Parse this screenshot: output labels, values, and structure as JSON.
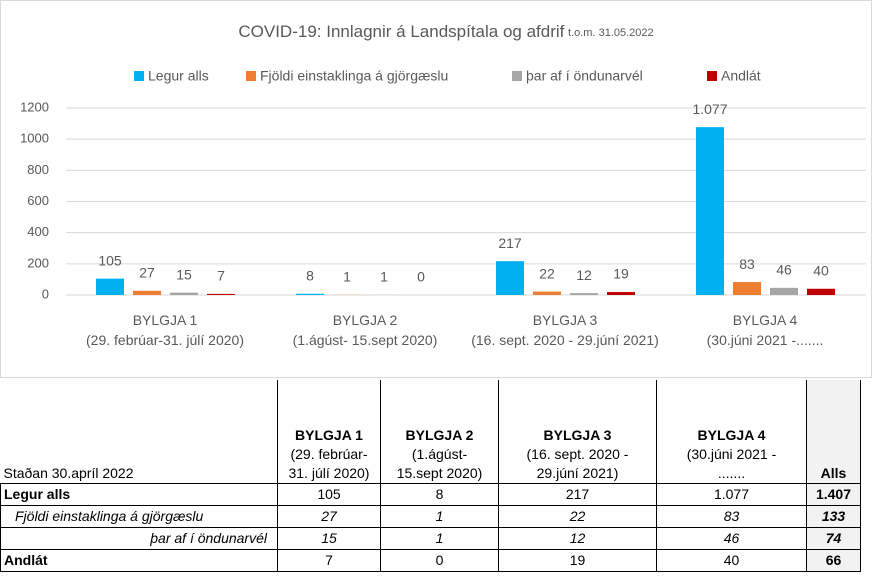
{
  "chart_data": {
    "type": "bar",
    "title": "COVID-19: Innlagnir á Landspítala og afdrif",
    "subtitle": "t.o.m. 31.05.2022",
    "categories": [
      "BYLGJA 1\n(29. febrúar-31. júlí 2020)",
      "BYLGJA 2\n(1.ágúst- 15.sept 2020)",
      "BYLGJA 3\n(16. sept. 2020 - 29.júní 2021)",
      "BYLGJA 4\n(30.júni 2021 -......."
    ],
    "series": [
      {
        "name": "Legur alls",
        "color": "#00b0f0",
        "values": [
          105,
          8,
          217,
          1077
        ],
        "value_labels": [
          "105",
          "8",
          "217",
          "1.077"
        ]
      },
      {
        "name": "Fjöldi einstaklinga á gjörgæslu",
        "color": "#ed7d31",
        "values": [
          27,
          1,
          22,
          83
        ]
      },
      {
        "name": "þar af í öndunarvél",
        "color": "#a5a5a5",
        "values": [
          15,
          1,
          12,
          46
        ]
      },
      {
        "name": "Andlát",
        "color": "#c00000",
        "values": [
          7,
          0,
          19,
          40
        ]
      }
    ],
    "ylim": [
      0,
      1200
    ],
    "yticks": [
      0,
      200,
      400,
      600,
      800,
      1000,
      1200
    ],
    "grid": true,
    "legend": "top"
  },
  "table": {
    "corner": "Staðan 30.apríl 2022",
    "columns": [
      {
        "title": "BYLGJA 1",
        "subtitle": "(29. febrúar-\n31. júlí 2020)"
      },
      {
        "title": "BYLGJA 2",
        "subtitle": "(1.ágúst-\n15.sept 2020)"
      },
      {
        "title": "BYLGJA 3",
        "subtitle": "(16. sept. 2020 -\n29.júní 2021)"
      },
      {
        "title": "BYLGJA 4",
        "subtitle": "(30.júni 2021 -\n......."
      }
    ],
    "total_header": "Alls",
    "rows": [
      {
        "label": "Legur alls",
        "cells": [
          "105",
          "8",
          "217",
          "1.077"
        ],
        "total": "1.407"
      },
      {
        "label": "Fjöldi einstaklinga á gjörgæslu",
        "cells": [
          "27",
          "1",
          "22",
          "83"
        ],
        "total": "133"
      },
      {
        "label": "þar af í öndunarvél",
        "cells": [
          "15",
          "1",
          "12",
          "46"
        ],
        "total": "74"
      },
      {
        "label": "Andlát",
        "cells": [
          "7",
          "0",
          "19",
          "40"
        ],
        "total": "66"
      }
    ]
  }
}
